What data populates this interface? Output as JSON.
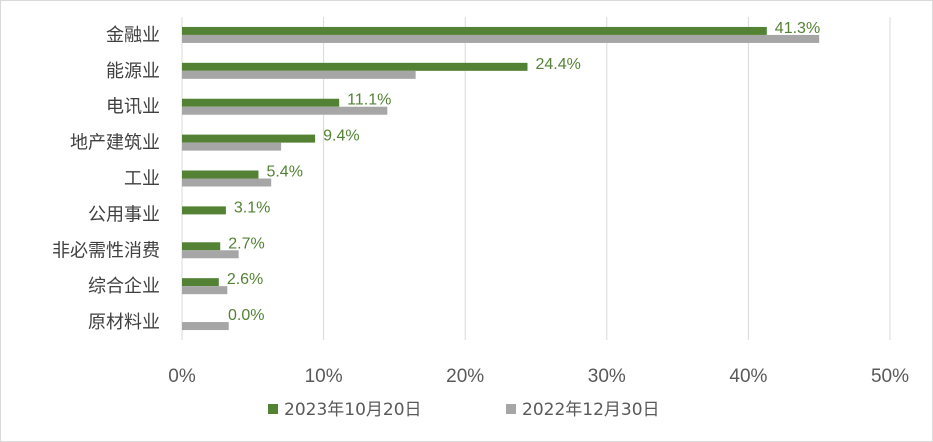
{
  "chart_data": {
    "type": "bar",
    "orientation": "horizontal",
    "categories": [
      "金融业",
      "能源业",
      "电讯业",
      "地产建筑业",
      "工业",
      "公用事业",
      "非必需性消费",
      "综合企业",
      "原材料业"
    ],
    "series": [
      {
        "name": "2023年10月20日",
        "color": "#548235",
        "values": [
          41.3,
          24.4,
          11.1,
          9.4,
          5.4,
          3.1,
          2.7,
          2.6,
          0.0
        ],
        "labels": [
          "41.3%",
          "24.4%",
          "11.1%",
          "9.4%",
          "5.4%",
          "3.1%",
          "2.7%",
          "2.6%",
          "0.0%"
        ]
      },
      {
        "name": "2022年12月30日",
        "color": "#a6a6a6",
        "values": [
          45.0,
          16.5,
          14.5,
          7.0,
          6.3,
          0.0,
          4.0,
          3.2,
          3.3
        ]
      }
    ],
    "xlim": [
      0,
      50
    ],
    "x_ticks": [
      "0%",
      "10%",
      "20%",
      "30%",
      "40%",
      "50%"
    ],
    "grid": true,
    "legend_position": "bottom"
  }
}
